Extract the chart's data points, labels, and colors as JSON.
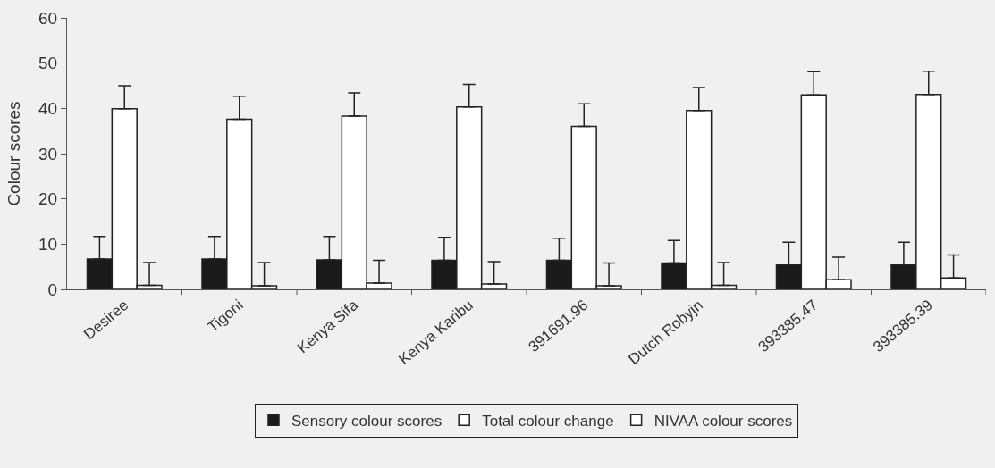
{
  "chart_data": {
    "type": "bar",
    "ylabel": "Colour scores",
    "categories": [
      "Desiree",
      "Tigoni",
      "Kenya Sifa",
      "Kenya Karibu",
      "391691.96",
      "Dutch Robyjn",
      "393385.47",
      "393385.39"
    ],
    "series": [
      {
        "name": "Sensory colour scores",
        "color": "#1a1a1a",
        "values": [
          6.7,
          6.7,
          6.5,
          6.4,
          6.4,
          5.8,
          5.4,
          5.4
        ],
        "errors": [
          [
            6.7,
            11.7
          ],
          [
            6.7,
            11.7
          ],
          [
            6.5,
            11.7
          ],
          [
            6.4,
            11.5
          ],
          [
            6.4,
            11.3
          ],
          [
            5.8,
            10.8
          ],
          [
            5.4,
            10.4
          ],
          [
            5.4,
            10.4
          ]
        ]
      },
      {
        "name": "Total colour change",
        "color": "#ffffff",
        "values": [
          39.9,
          37.6,
          38.3,
          40.3,
          36.0,
          39.5,
          43.0,
          43.1
        ],
        "errors": [
          [
            39.9,
            45.0
          ],
          [
            37.6,
            42.7
          ],
          [
            38.3,
            43.4
          ],
          [
            40.3,
            45.3
          ],
          [
            36.0,
            41.0
          ],
          [
            39.5,
            44.6
          ],
          [
            43.0,
            48.1
          ],
          [
            43.1,
            48.2
          ]
        ]
      },
      {
        "name": "NIVAA colour scores",
        "color": "#ffffff",
        "values": [
          0.9,
          0.8,
          1.4,
          1.2,
          0.8,
          0.9,
          2.1,
          2.5
        ],
        "errors": [
          [
            0.9,
            5.9
          ],
          [
            0.8,
            5.9
          ],
          [
            1.4,
            6.4
          ],
          [
            1.2,
            6.1
          ],
          [
            0.8,
            5.8
          ],
          [
            0.9,
            5.9
          ],
          [
            2.1,
            7.1
          ],
          [
            2.5,
            7.6
          ]
        ]
      }
    ],
    "ylim": [
      0,
      60
    ],
    "yticks": [
      0,
      10,
      20,
      30,
      40,
      50,
      60
    ],
    "grid": false,
    "legend": "bottom"
  }
}
